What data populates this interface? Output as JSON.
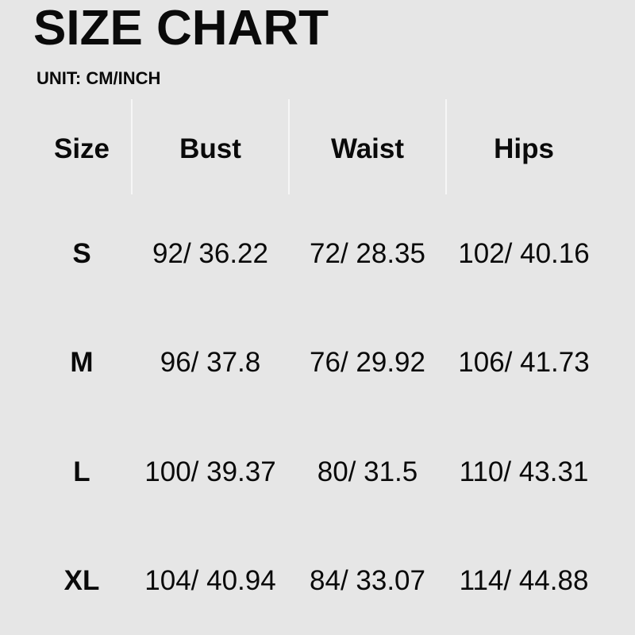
{
  "title": "SIZE CHART",
  "unit": "UNIT: CM/INCH",
  "headers": [
    "Size",
    "Bust",
    "Waist",
    "Hips"
  ],
  "rows": [
    [
      "S",
      "92/ 36.22",
      "72/ 28.35",
      "102/ 40.16"
    ],
    [
      "M",
      "96/ 37.8",
      "76/ 29.92",
      "106/ 41.73"
    ],
    [
      "L",
      "100/ 39.37",
      "80/ 31.5",
      "110/ 43.31"
    ],
    [
      "XL",
      "104/ 40.94",
      "84/ 33.07",
      "114/ 44.88"
    ]
  ],
  "colors": {
    "background": "#e6e6e6",
    "text": "#0a0a0a"
  }
}
